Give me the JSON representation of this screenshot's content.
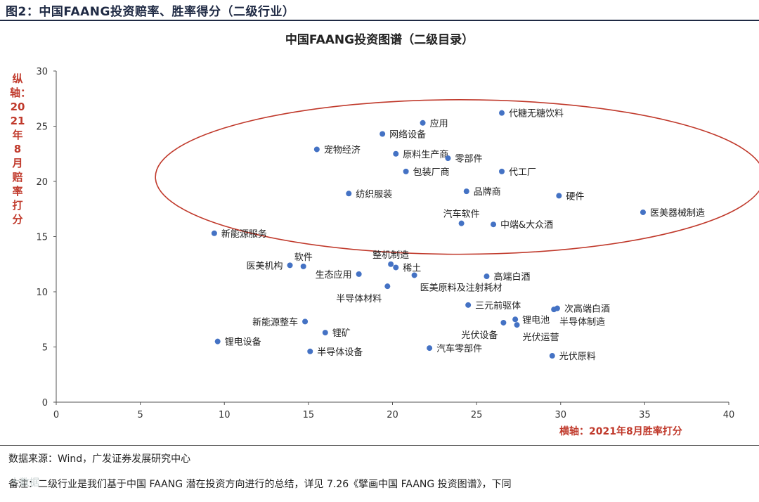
{
  "figure_title": "图2：中国FAANG投资赔率、胜率得分（二级行业）",
  "source": "数据来源：Wind，广发证券发展研究中心",
  "note": "备注：二级行业是我们基于中国 FAANG 潜在投资方向进行的总结，详见 7.26《擘画中国 FAANG 投资图谱》，下同",
  "watermark": "大数据",
  "colors": {
    "point": "#4472c4",
    "ellipse": "#c0392b",
    "axis_label": "#c0392b",
    "header": "#1f2a44"
  },
  "chart_data": {
    "type": "scatter",
    "title": "中国FAANG投资图谱（二级目录）",
    "xlabel": "横轴：2021年8月胜率打分",
    "ylabel": "纵轴：2021年8月赔率打分",
    "xlim": [
      0,
      40
    ],
    "ylim": [
      0,
      30
    ],
    "xticks": [
      0,
      5,
      10,
      15,
      20,
      25,
      30,
      35,
      40
    ],
    "yticks": [
      0,
      5,
      10,
      15,
      20,
      25,
      30
    ],
    "grid": false,
    "highlight_ellipse": {
      "center": [
        24.0,
        20.4
      ],
      "rx": 18.1,
      "ry": 7.0
    },
    "points": [
      {
        "label": "代糖无糖饮料",
        "x": 26.5,
        "y": 26.2,
        "anchor": "right"
      },
      {
        "label": "应用",
        "x": 21.8,
        "y": 25.3,
        "anchor": "right"
      },
      {
        "label": "网络设备",
        "x": 19.4,
        "y": 24.3,
        "anchor": "right"
      },
      {
        "label": "宠物经济",
        "x": 15.5,
        "y": 22.9,
        "anchor": "right"
      },
      {
        "label": "原料生产商",
        "x": 20.2,
        "y": 22.5,
        "anchor": "right"
      },
      {
        "label": "零部件",
        "x": 23.3,
        "y": 22.1,
        "anchor": "right"
      },
      {
        "label": "包装厂商",
        "x": 20.8,
        "y": 20.9,
        "anchor": "right"
      },
      {
        "label": "代工厂",
        "x": 26.5,
        "y": 20.9,
        "anchor": "right"
      },
      {
        "label": "纺织服装",
        "x": 17.4,
        "y": 18.9,
        "anchor": "right"
      },
      {
        "label": "品牌商",
        "x": 24.4,
        "y": 19.1,
        "anchor": "right"
      },
      {
        "label": "硬件",
        "x": 29.9,
        "y": 18.7,
        "anchor": "right"
      },
      {
        "label": "医美器械制造",
        "x": 34.9,
        "y": 17.2,
        "anchor": "right"
      },
      {
        "label": "汽车软件",
        "x": 24.1,
        "y": 16.2,
        "anchor": "above"
      },
      {
        "label": "中端&大众酒",
        "x": 26.0,
        "y": 16.1,
        "anchor": "right"
      },
      {
        "label": "新能源服务",
        "x": 9.4,
        "y": 15.3,
        "anchor": "right"
      },
      {
        "label": "软件",
        "x": 14.7,
        "y": 12.3,
        "anchor": "above"
      },
      {
        "label": "医美机构",
        "x": 13.9,
        "y": 12.4,
        "anchor": "left"
      },
      {
        "label": "整机制造",
        "x": 19.9,
        "y": 12.5,
        "anchor": "above"
      },
      {
        "label": "稀土",
        "x": 20.2,
        "y": 12.2,
        "anchor": "right"
      },
      {
        "label": "生态应用",
        "x": 18.0,
        "y": 11.6,
        "anchor": "left"
      },
      {
        "label": "高端白酒",
        "x": 25.6,
        "y": 11.4,
        "anchor": "right"
      },
      {
        "label": "半导体材料",
        "x": 19.7,
        "y": 10.5,
        "anchor": "below-left"
      },
      {
        "label": "医美原料及注射耗材",
        "x": 21.3,
        "y": 11.5,
        "anchor": "below-right"
      },
      {
        "label": "三元前驱体",
        "x": 24.5,
        "y": 8.8,
        "anchor": "right"
      },
      {
        "label": "次高端白酒",
        "x": 29.8,
        "y": 8.5,
        "anchor": "right"
      },
      {
        "label": "半导体制造",
        "x": 29.6,
        "y": 8.4,
        "anchor": "below-right"
      },
      {
        "label": "新能源整车",
        "x": 14.8,
        "y": 7.3,
        "anchor": "left"
      },
      {
        "label": "锂电池",
        "x": 27.3,
        "y": 7.5,
        "anchor": "right"
      },
      {
        "label": "光伏设备",
        "x": 26.6,
        "y": 7.2,
        "anchor": "below-left"
      },
      {
        "label": "锂矿",
        "x": 16.0,
        "y": 6.3,
        "anchor": "right"
      },
      {
        "label": "光伏运营",
        "x": 27.4,
        "y": 7.0,
        "anchor": "below-right"
      },
      {
        "label": "锂电设备",
        "x": 9.6,
        "y": 5.5,
        "anchor": "right"
      },
      {
        "label": "半导体设备",
        "x": 15.1,
        "y": 4.6,
        "anchor": "right"
      },
      {
        "label": "汽车零部件",
        "x": 22.2,
        "y": 4.9,
        "anchor": "right"
      },
      {
        "label": "光伏原料",
        "x": 29.5,
        "y": 4.2,
        "anchor": "right"
      }
    ]
  }
}
